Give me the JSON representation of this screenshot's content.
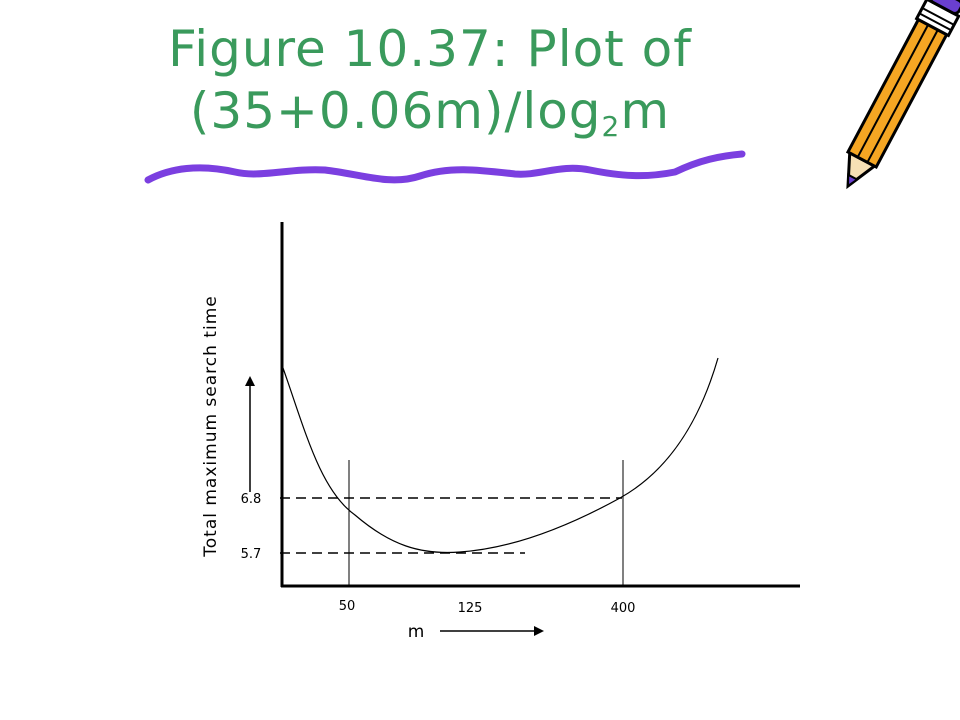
{
  "title": {
    "line1": "Figure 10.37: Plot of",
    "line2_prefix": "(35+0.06m)/log",
    "line2_sub": "2",
    "line2_suffix": "m"
  },
  "colors": {
    "title": "#3a9a5c",
    "underline": "#7b3fe0",
    "pencil_body": "#f5a623",
    "pencil_outline": "#000000",
    "axis": "#000000"
  },
  "chart_data": {
    "type": "line",
    "title": "",
    "xlabel": "m",
    "ylabel": "Total maximum search time",
    "x_ticks": [
      "50",
      "125",
      "400"
    ],
    "y_ticks": [
      "6.8",
      "5.7"
    ],
    "series": [
      {
        "name": "",
        "shape": "U-shaped curve with minimum near m = 125"
      }
    ],
    "reference_lines": {
      "horizontal": [
        "6.8",
        "5.7"
      ],
      "vertical": [
        "50",
        "400"
      ]
    },
    "grid": false,
    "legend": "none"
  }
}
